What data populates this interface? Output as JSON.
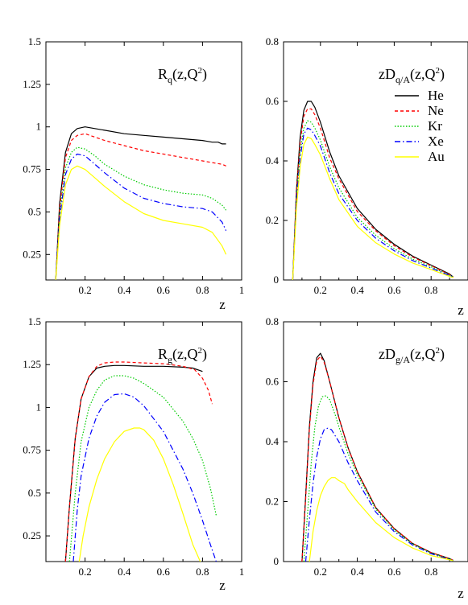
{
  "chart_data": [
    {
      "type": "line",
      "title_main": "R",
      "title_sub": "q",
      "title_rest": "(z,Q",
      "title_sup": "2",
      "title_end": ")",
      "xlabel": "z",
      "xlim": [
        0,
        1
      ],
      "ylim": [
        0.1,
        1.5
      ],
      "xticks": [
        0.2,
        0.4,
        0.6,
        0.8,
        1
      ],
      "xtick_labels": [
        "0.2",
        "0.4",
        "0.6",
        "0.8",
        "1"
      ],
      "yticks": [
        0.25,
        0.5,
        0.75,
        1,
        1.25,
        1.5
      ],
      "ytick_labels": [
        "0.25",
        "0.5",
        "0.75",
        "1",
        "1.25",
        "1.5"
      ],
      "series": [
        {
          "name": "He",
          "x": [
            0.05,
            0.07,
            0.1,
            0.13,
            0.16,
            0.2,
            0.25,
            0.3,
            0.4,
            0.5,
            0.6,
            0.7,
            0.8,
            0.85,
            0.88,
            0.9,
            0.92
          ],
          "y": [
            0.1,
            0.55,
            0.85,
            0.96,
            0.99,
            1.0,
            0.99,
            0.98,
            0.96,
            0.95,
            0.94,
            0.93,
            0.92,
            0.91,
            0.91,
            0.9,
            0.9
          ]
        },
        {
          "name": "Ne",
          "x": [
            0.05,
            0.07,
            0.1,
            0.13,
            0.16,
            0.2,
            0.25,
            0.3,
            0.4,
            0.5,
            0.6,
            0.7,
            0.8,
            0.9,
            0.92
          ],
          "y": [
            0.1,
            0.52,
            0.82,
            0.92,
            0.95,
            0.96,
            0.94,
            0.92,
            0.89,
            0.86,
            0.84,
            0.82,
            0.8,
            0.78,
            0.77
          ]
        },
        {
          "name": "Kr",
          "x": [
            0.05,
            0.07,
            0.1,
            0.13,
            0.16,
            0.2,
            0.25,
            0.3,
            0.4,
            0.5,
            0.6,
            0.7,
            0.8,
            0.85,
            0.9,
            0.92
          ],
          "y": [
            0.1,
            0.48,
            0.76,
            0.85,
            0.88,
            0.87,
            0.83,
            0.78,
            0.71,
            0.66,
            0.63,
            0.61,
            0.6,
            0.58,
            0.54,
            0.51
          ]
        },
        {
          "name": "Xe",
          "x": [
            0.05,
            0.07,
            0.1,
            0.13,
            0.16,
            0.2,
            0.25,
            0.3,
            0.4,
            0.5,
            0.6,
            0.7,
            0.8,
            0.85,
            0.9,
            0.92
          ],
          "y": [
            0.1,
            0.46,
            0.72,
            0.81,
            0.84,
            0.83,
            0.78,
            0.73,
            0.64,
            0.58,
            0.55,
            0.53,
            0.52,
            0.5,
            0.44,
            0.39
          ]
        },
        {
          "name": "Au",
          "x": [
            0.05,
            0.07,
            0.1,
            0.13,
            0.16,
            0.2,
            0.25,
            0.3,
            0.4,
            0.5,
            0.6,
            0.7,
            0.8,
            0.85,
            0.9,
            0.92
          ],
          "y": [
            0.1,
            0.42,
            0.66,
            0.75,
            0.77,
            0.75,
            0.7,
            0.65,
            0.56,
            0.49,
            0.45,
            0.43,
            0.41,
            0.38,
            0.3,
            0.25
          ]
        }
      ]
    },
    {
      "type": "line",
      "title_main": "zD",
      "title_sub": "q/A",
      "title_rest": "(z,Q",
      "title_sup": "2",
      "title_end": ")",
      "xlabel": "z",
      "xlim": [
        0,
        1
      ],
      "ylim": [
        0,
        0.8
      ],
      "xticks": [
        0.2,
        0.4,
        0.6,
        0.8
      ],
      "xtick_labels": [
        "0.2",
        "0.4",
        "0.6",
        "0.8"
      ],
      "yticks": [
        0,
        0.2,
        0.4,
        0.6,
        0.8
      ],
      "ytick_labels": [
        "0",
        "0.2",
        "0.4",
        "0.6",
        "0.8"
      ],
      "legend": {
        "position": "top-right",
        "entries": [
          "He",
          "Ne",
          "Kr",
          "Xe",
          "Au"
        ]
      },
      "series": [
        {
          "name": "He",
          "x": [
            0.05,
            0.07,
            0.09,
            0.11,
            0.13,
            0.15,
            0.17,
            0.2,
            0.25,
            0.3,
            0.4,
            0.5,
            0.6,
            0.7,
            0.8,
            0.9,
            0.92
          ],
          "y": [
            0,
            0.3,
            0.48,
            0.57,
            0.6,
            0.6,
            0.58,
            0.53,
            0.43,
            0.35,
            0.24,
            0.17,
            0.12,
            0.08,
            0.05,
            0.02,
            0.01
          ]
        },
        {
          "name": "Ne",
          "x": [
            0.05,
            0.07,
            0.09,
            0.11,
            0.13,
            0.15,
            0.17,
            0.2,
            0.25,
            0.3,
            0.4,
            0.5,
            0.6,
            0.7,
            0.8,
            0.9,
            0.92
          ],
          "y": [
            0,
            0.29,
            0.46,
            0.55,
            0.575,
            0.575,
            0.555,
            0.51,
            0.41,
            0.34,
            0.23,
            0.165,
            0.115,
            0.077,
            0.048,
            0.018,
            0.01
          ]
        },
        {
          "name": "Kr",
          "x": [
            0.05,
            0.07,
            0.09,
            0.11,
            0.13,
            0.15,
            0.17,
            0.2,
            0.25,
            0.3,
            0.4,
            0.5,
            0.6,
            0.7,
            0.8,
            0.9,
            0.92
          ],
          "y": [
            0,
            0.27,
            0.43,
            0.51,
            0.535,
            0.53,
            0.51,
            0.47,
            0.38,
            0.31,
            0.21,
            0.15,
            0.105,
            0.07,
            0.044,
            0.016,
            0.01
          ]
        },
        {
          "name": "Xe",
          "x": [
            0.05,
            0.07,
            0.09,
            0.11,
            0.13,
            0.15,
            0.17,
            0.2,
            0.25,
            0.3,
            0.4,
            0.5,
            0.6,
            0.7,
            0.8,
            0.9,
            0.92
          ],
          "y": [
            0,
            0.26,
            0.41,
            0.49,
            0.51,
            0.505,
            0.485,
            0.45,
            0.36,
            0.29,
            0.2,
            0.14,
            0.098,
            0.065,
            0.04,
            0.015,
            0.01
          ]
        },
        {
          "name": "Au",
          "x": [
            0.05,
            0.07,
            0.09,
            0.11,
            0.13,
            0.15,
            0.17,
            0.2,
            0.25,
            0.3,
            0.4,
            0.5,
            0.6,
            0.7,
            0.8,
            0.9,
            0.92
          ],
          "y": [
            0,
            0.24,
            0.38,
            0.455,
            0.48,
            0.475,
            0.455,
            0.42,
            0.34,
            0.27,
            0.18,
            0.125,
            0.087,
            0.057,
            0.035,
            0.012,
            0.008
          ]
        }
      ]
    },
    {
      "type": "line",
      "title_main": "R",
      "title_sub": "g",
      "title_rest": "(z,Q",
      "title_sup": "2",
      "title_end": ")",
      "xlabel": "z",
      "xlim": [
        0,
        1
      ],
      "ylim": [
        0.1,
        1.5
      ],
      "xticks": [
        0.2,
        0.4,
        0.6,
        0.8,
        1
      ],
      "xtick_labels": [
        "0.2",
        "0.4",
        "0.6",
        "0.8",
        "1"
      ],
      "yticks": [
        0.25,
        0.5,
        0.75,
        1,
        1.25,
        1.5
      ],
      "ytick_labels": [
        "0.25",
        "0.5",
        "0.75",
        "1",
        "1.25",
        "1.5"
      ],
      "series": [
        {
          "name": "He",
          "x": [
            0.1,
            0.12,
            0.15,
            0.18,
            0.22,
            0.26,
            0.3,
            0.35,
            0.4,
            0.5,
            0.6,
            0.7,
            0.75,
            0.8
          ],
          "y": [
            0.1,
            0.42,
            0.82,
            1.05,
            1.18,
            1.23,
            1.24,
            1.245,
            1.245,
            1.24,
            1.24,
            1.235,
            1.23,
            1.21
          ]
        },
        {
          "name": "Ne",
          "x": [
            0.1,
            0.12,
            0.15,
            0.18,
            0.22,
            0.26,
            0.3,
            0.35,
            0.4,
            0.5,
            0.6,
            0.7,
            0.76,
            0.8,
            0.83,
            0.85
          ],
          "y": [
            0.1,
            0.42,
            0.82,
            1.05,
            1.18,
            1.24,
            1.26,
            1.265,
            1.265,
            1.26,
            1.255,
            1.24,
            1.22,
            1.17,
            1.1,
            1.02
          ]
        },
        {
          "name": "Kr",
          "x": [
            0.12,
            0.15,
            0.18,
            0.22,
            0.26,
            0.3,
            0.35,
            0.4,
            0.45,
            0.5,
            0.6,
            0.7,
            0.75,
            0.8,
            0.84,
            0.87
          ],
          "y": [
            0.1,
            0.5,
            0.8,
            1.0,
            1.1,
            1.16,
            1.185,
            1.185,
            1.17,
            1.14,
            1.06,
            0.92,
            0.82,
            0.69,
            0.53,
            0.37
          ]
        },
        {
          "name": "Xe",
          "x": [
            0.14,
            0.16,
            0.18,
            0.22,
            0.26,
            0.3,
            0.35,
            0.4,
            0.45,
            0.5,
            0.6,
            0.7,
            0.75,
            0.8,
            0.84,
            0.87
          ],
          "y": [
            0.1,
            0.4,
            0.6,
            0.82,
            0.95,
            1.03,
            1.075,
            1.08,
            1.06,
            1.01,
            0.86,
            0.64,
            0.5,
            0.34,
            0.2,
            0.1
          ]
        },
        {
          "name": "Au",
          "x": [
            0.17,
            0.19,
            0.22,
            0.26,
            0.3,
            0.35,
            0.4,
            0.45,
            0.48,
            0.5,
            0.55,
            0.6,
            0.65,
            0.7,
            0.75,
            0.8
          ],
          "y": [
            0.1,
            0.25,
            0.42,
            0.58,
            0.7,
            0.8,
            0.86,
            0.88,
            0.88,
            0.87,
            0.81,
            0.7,
            0.55,
            0.38,
            0.2,
            0.07
          ]
        }
      ]
    },
    {
      "type": "line",
      "title_main": "zD",
      "title_sub": "g/A",
      "title_rest": "(z,Q",
      "title_sup": "2",
      "title_end": ")",
      "xlabel": "z",
      "xlim": [
        0,
        1
      ],
      "ylim": [
        0,
        0.8
      ],
      "xticks": [
        0.2,
        0.4,
        0.6,
        0.8
      ],
      "xtick_labels": [
        "0.2",
        "0.4",
        "0.6",
        "0.8"
      ],
      "yticks": [
        0,
        0.2,
        0.4,
        0.6,
        0.8
      ],
      "ytick_labels": [
        "0",
        "0.2",
        "0.4",
        "0.6",
        "0.8"
      ],
      "series": [
        {
          "name": "He",
          "x": [
            0.1,
            0.12,
            0.14,
            0.16,
            0.18,
            0.2,
            0.22,
            0.25,
            0.3,
            0.35,
            0.4,
            0.5,
            0.6,
            0.7,
            0.8,
            0.9,
            0.92
          ],
          "y": [
            0,
            0.22,
            0.45,
            0.6,
            0.68,
            0.695,
            0.67,
            0.6,
            0.48,
            0.38,
            0.3,
            0.18,
            0.11,
            0.06,
            0.03,
            0.01,
            0.004
          ]
        },
        {
          "name": "Ne",
          "x": [
            0.1,
            0.12,
            0.14,
            0.16,
            0.18,
            0.2,
            0.22,
            0.25,
            0.3,
            0.35,
            0.4,
            0.5,
            0.6,
            0.7,
            0.8,
            0.9,
            0.92
          ],
          "y": [
            0,
            0.21,
            0.44,
            0.59,
            0.67,
            0.685,
            0.665,
            0.6,
            0.48,
            0.38,
            0.3,
            0.18,
            0.11,
            0.06,
            0.03,
            0.01,
            0.004
          ]
        },
        {
          "name": "Kr",
          "x": [
            0.11,
            0.13,
            0.15,
            0.17,
            0.19,
            0.21,
            0.23,
            0.25,
            0.28,
            0.3,
            0.35,
            0.4,
            0.5,
            0.6,
            0.7,
            0.8,
            0.9,
            0.92
          ],
          "y": [
            0,
            0.16,
            0.33,
            0.45,
            0.52,
            0.55,
            0.553,
            0.54,
            0.49,
            0.45,
            0.36,
            0.29,
            0.175,
            0.105,
            0.058,
            0.028,
            0.008,
            0.004
          ]
        },
        {
          "name": "Xe",
          "x": [
            0.12,
            0.14,
            0.16,
            0.18,
            0.2,
            0.22,
            0.24,
            0.26,
            0.28,
            0.3,
            0.35,
            0.4,
            0.5,
            0.6,
            0.7,
            0.8,
            0.9,
            0.92
          ],
          "y": [
            0,
            0.14,
            0.26,
            0.35,
            0.41,
            0.44,
            0.445,
            0.44,
            0.42,
            0.4,
            0.33,
            0.27,
            0.165,
            0.1,
            0.055,
            0.026,
            0.007,
            0.003
          ]
        },
        {
          "name": "Au",
          "x": [
            0.14,
            0.16,
            0.18,
            0.2,
            0.22,
            0.24,
            0.26,
            0.28,
            0.3,
            0.33,
            0.35,
            0.4,
            0.5,
            0.6,
            0.7,
            0.8,
            0.9,
            0.92
          ],
          "y": [
            0,
            0.1,
            0.17,
            0.22,
            0.25,
            0.27,
            0.28,
            0.28,
            0.27,
            0.26,
            0.24,
            0.2,
            0.13,
            0.08,
            0.045,
            0.02,
            0.006,
            0.003
          ]
        }
      ]
    }
  ],
  "style": {
    "series_colors": {
      "He": "#000000",
      "Ne": "#ff0000",
      "Kr": "#00cc00",
      "Xe": "#0000ff",
      "Au": "#ffff00"
    },
    "series_dash": {
      "He": "",
      "Ne": "4,3",
      "Kr": "1.5,2",
      "Xe": "7,3,1.5,3",
      "Au": ""
    }
  }
}
